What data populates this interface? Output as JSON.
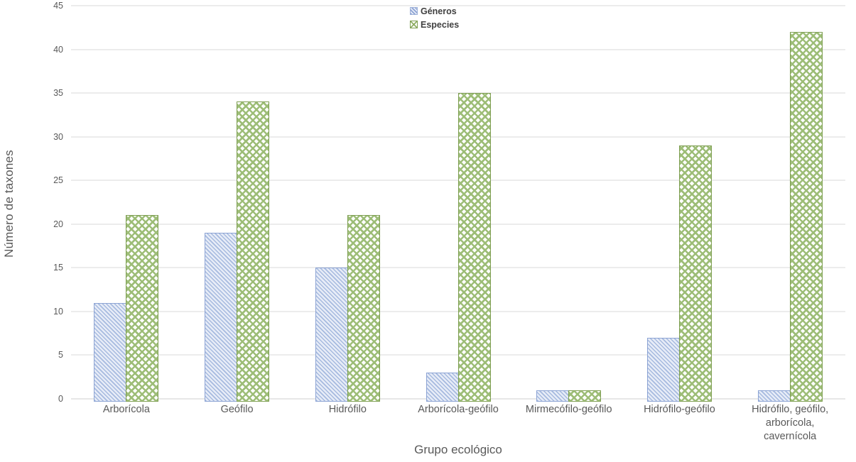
{
  "chart_data": {
    "type": "bar",
    "title": "",
    "xlabel": "Grupo ecológico",
    "ylabel": "Número de taxones",
    "categories": [
      "Arborícola",
      "Geófilo",
      "Hidrófilo",
      "Arborícola-geófilo",
      "Mirmecófilo-geófilo",
      "Hidrófilo-geófilo",
      "Hidrófilo, geófilo, arborícola, cavernícola"
    ],
    "series": [
      {
        "name": "Géneros",
        "pattern": "diagonal-hatch",
        "fill": "#e7ecf7",
        "line": "#8da4d4",
        "values": [
          11,
          19,
          15,
          3,
          1,
          7,
          1
        ]
      },
      {
        "name": "Especies",
        "pattern": "cross-hatch",
        "fill": "#ffffff",
        "line": "#7f9f53",
        "values": [
          21,
          34,
          21,
          35,
          1,
          29,
          42
        ]
      }
    ],
    "ylim": [
      0,
      45
    ],
    "ytick_step": 5,
    "grid": "horizontal",
    "legend_position": "top-center",
    "colors": {
      "gridline": "#d9d9d9",
      "axis_text": "#595959",
      "legend_text": "#404040"
    }
  }
}
